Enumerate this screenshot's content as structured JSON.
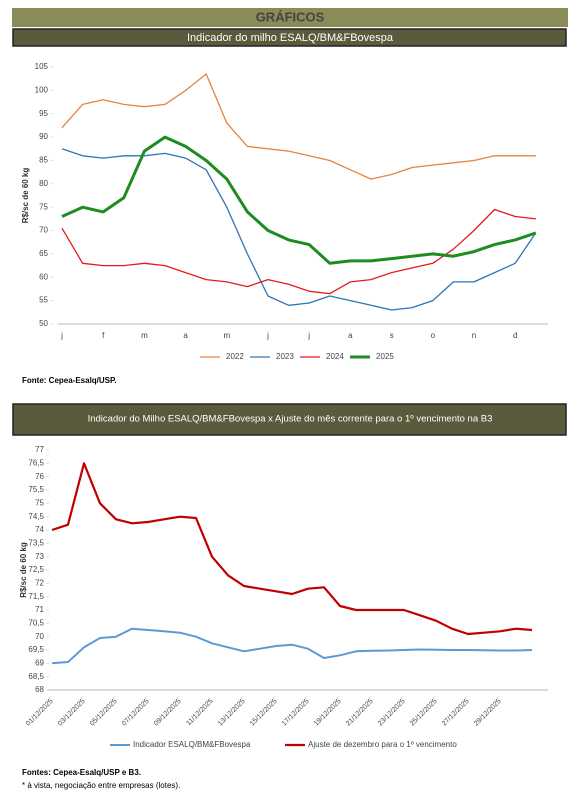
{
  "header": {
    "title": "GRÁFICOS"
  },
  "chart_data": [
    {
      "type": "line",
      "title": "Indicador do milho ESALQ/BM&FBovespa",
      "y_label": "R$/sc de 60 kg",
      "categories": [
        "j",
        null,
        "f",
        null,
        "m",
        null,
        "a",
        null,
        "m",
        null,
        "j",
        null,
        "j",
        null,
        "a",
        null,
        "s",
        null,
        "o",
        null,
        "n",
        null,
        "d",
        null
      ],
      "ylim": [
        50,
        105
      ],
      "yticks": [
        50,
        55,
        60,
        65,
        70,
        75,
        80,
        85,
        90,
        95,
        100,
        105
      ],
      "series": [
        {
          "name": "2022",
          "color": "#e8833a",
          "linewidth": 1.3,
          "values": [
            92,
            97,
            98,
            97,
            96.5,
            97,
            100,
            103.5,
            93,
            88,
            87.5,
            87,
            86,
            85,
            83,
            81,
            82,
            83.5,
            84,
            84.5,
            85,
            86,
            86,
            86
          ]
        },
        {
          "name": "2023",
          "color": "#2e75b6",
          "linewidth": 1.3,
          "values": [
            87.5,
            86,
            85.5,
            86,
            86,
            86.5,
            85.5,
            83,
            75,
            65,
            56,
            54,
            54.5,
            56,
            55,
            54,
            53,
            53.5,
            55,
            59,
            59,
            61,
            63,
            69.5
          ]
        },
        {
          "name": "2024",
          "color": "#e41a1c",
          "linewidth": 1.3,
          "values": [
            70.5,
            63,
            62.5,
            62.5,
            63,
            62.5,
            61,
            59.5,
            59,
            58,
            59.5,
            58.5,
            57,
            56.5,
            59,
            59.5,
            61,
            62,
            63,
            66,
            70,
            74.5,
            73,
            72.5
          ]
        },
        {
          "name": "2025",
          "color": "#1e8c1e",
          "linewidth": 3,
          "values": [
            73,
            75,
            74,
            77,
            87,
            90,
            88,
            85,
            81,
            74,
            70,
            68,
            67,
            63,
            63.5,
            63.5,
            64,
            64.5,
            65,
            64.5,
            65.5,
            67,
            68,
            69.5
          ]
        }
      ],
      "source": "Fonte: Cepea-Esalq/USP."
    },
    {
      "type": "line",
      "title": "Indicador do Milho ESALQ/BM&FBovespa x Ajuste do mês corrente para o 1º vencimento na B3",
      "y_label": "R$/sc de 60 kg",
      "categories": [
        "01/12/2025",
        null,
        "03/12/2025",
        null,
        "05/12/2025",
        null,
        "07/12/2025",
        null,
        "09/12/2025",
        null,
        "11/12/2025",
        null,
        "13/12/2025",
        null,
        "15/12/2025",
        null,
        "17/12/2025",
        null,
        "19/12/2025",
        null,
        "21/12/2025",
        null,
        "23/12/2025",
        null,
        "25/12/2025",
        null,
        "27/12/2025",
        null,
        "29/12/2025",
        null,
        null
      ],
      "ylim": [
        68,
        77
      ],
      "yticks": [
        68,
        {
          "value": 68.5,
          "label": "68,5"
        },
        69,
        {
          "value": 69.5,
          "label": "69,5"
        },
        70,
        {
          "value": 70.5,
          "label": "70,5"
        },
        71,
        {
          "value": 71.5,
          "label": "71,5"
        },
        72,
        {
          "value": 72.5,
          "label": "72,5"
        },
        73,
        {
          "value": 73.5,
          "label": "73,5"
        },
        74,
        {
          "value": 74.5,
          "label": "74,5"
        },
        75,
        {
          "value": 75.5,
          "label": "75,5"
        },
        76,
        {
          "value": 76.5,
          "label": "76,5"
        },
        77
      ],
      "series": [
        {
          "name": "Indicador ESALQ/BM&FBovespa",
          "color": "#5b9bd5",
          "linewidth": 2,
          "values": [
            69.0,
            69.05,
            69.6,
            69.95,
            70.0,
            70.3,
            70.25,
            70.2,
            70.15,
            70.0,
            69.75,
            69.6,
            69.45,
            69.55,
            69.65,
            69.7,
            69.55,
            69.2,
            69.3,
            69.45,
            69.47,
            69.48,
            69.5,
            69.52,
            69.51,
            69.5,
            69.5,
            69.49,
            69.48,
            69.48,
            69.5
          ]
        },
        {
          "name": "Ajuste de dezembro para o 1º vencimento",
          "color": "#c00000",
          "linewidth": 2.2,
          "values": [
            74.0,
            74.2,
            76.5,
            75.0,
            74.4,
            74.25,
            74.3,
            74.4,
            74.5,
            74.45,
            73.0,
            72.3,
            71.9,
            71.8,
            71.7,
            71.6,
            71.8,
            71.85,
            71.15,
            71.0,
            71.0,
            71.0,
            71.0,
            70.8,
            70.6,
            70.3,
            70.1,
            70.15,
            70.2,
            70.3,
            70.25
          ]
        }
      ],
      "source": "Fontes: Cepea-Esalq/USP e B3.",
      "note": "*  à vista, negociação entre empresas (lotes)."
    }
  ]
}
